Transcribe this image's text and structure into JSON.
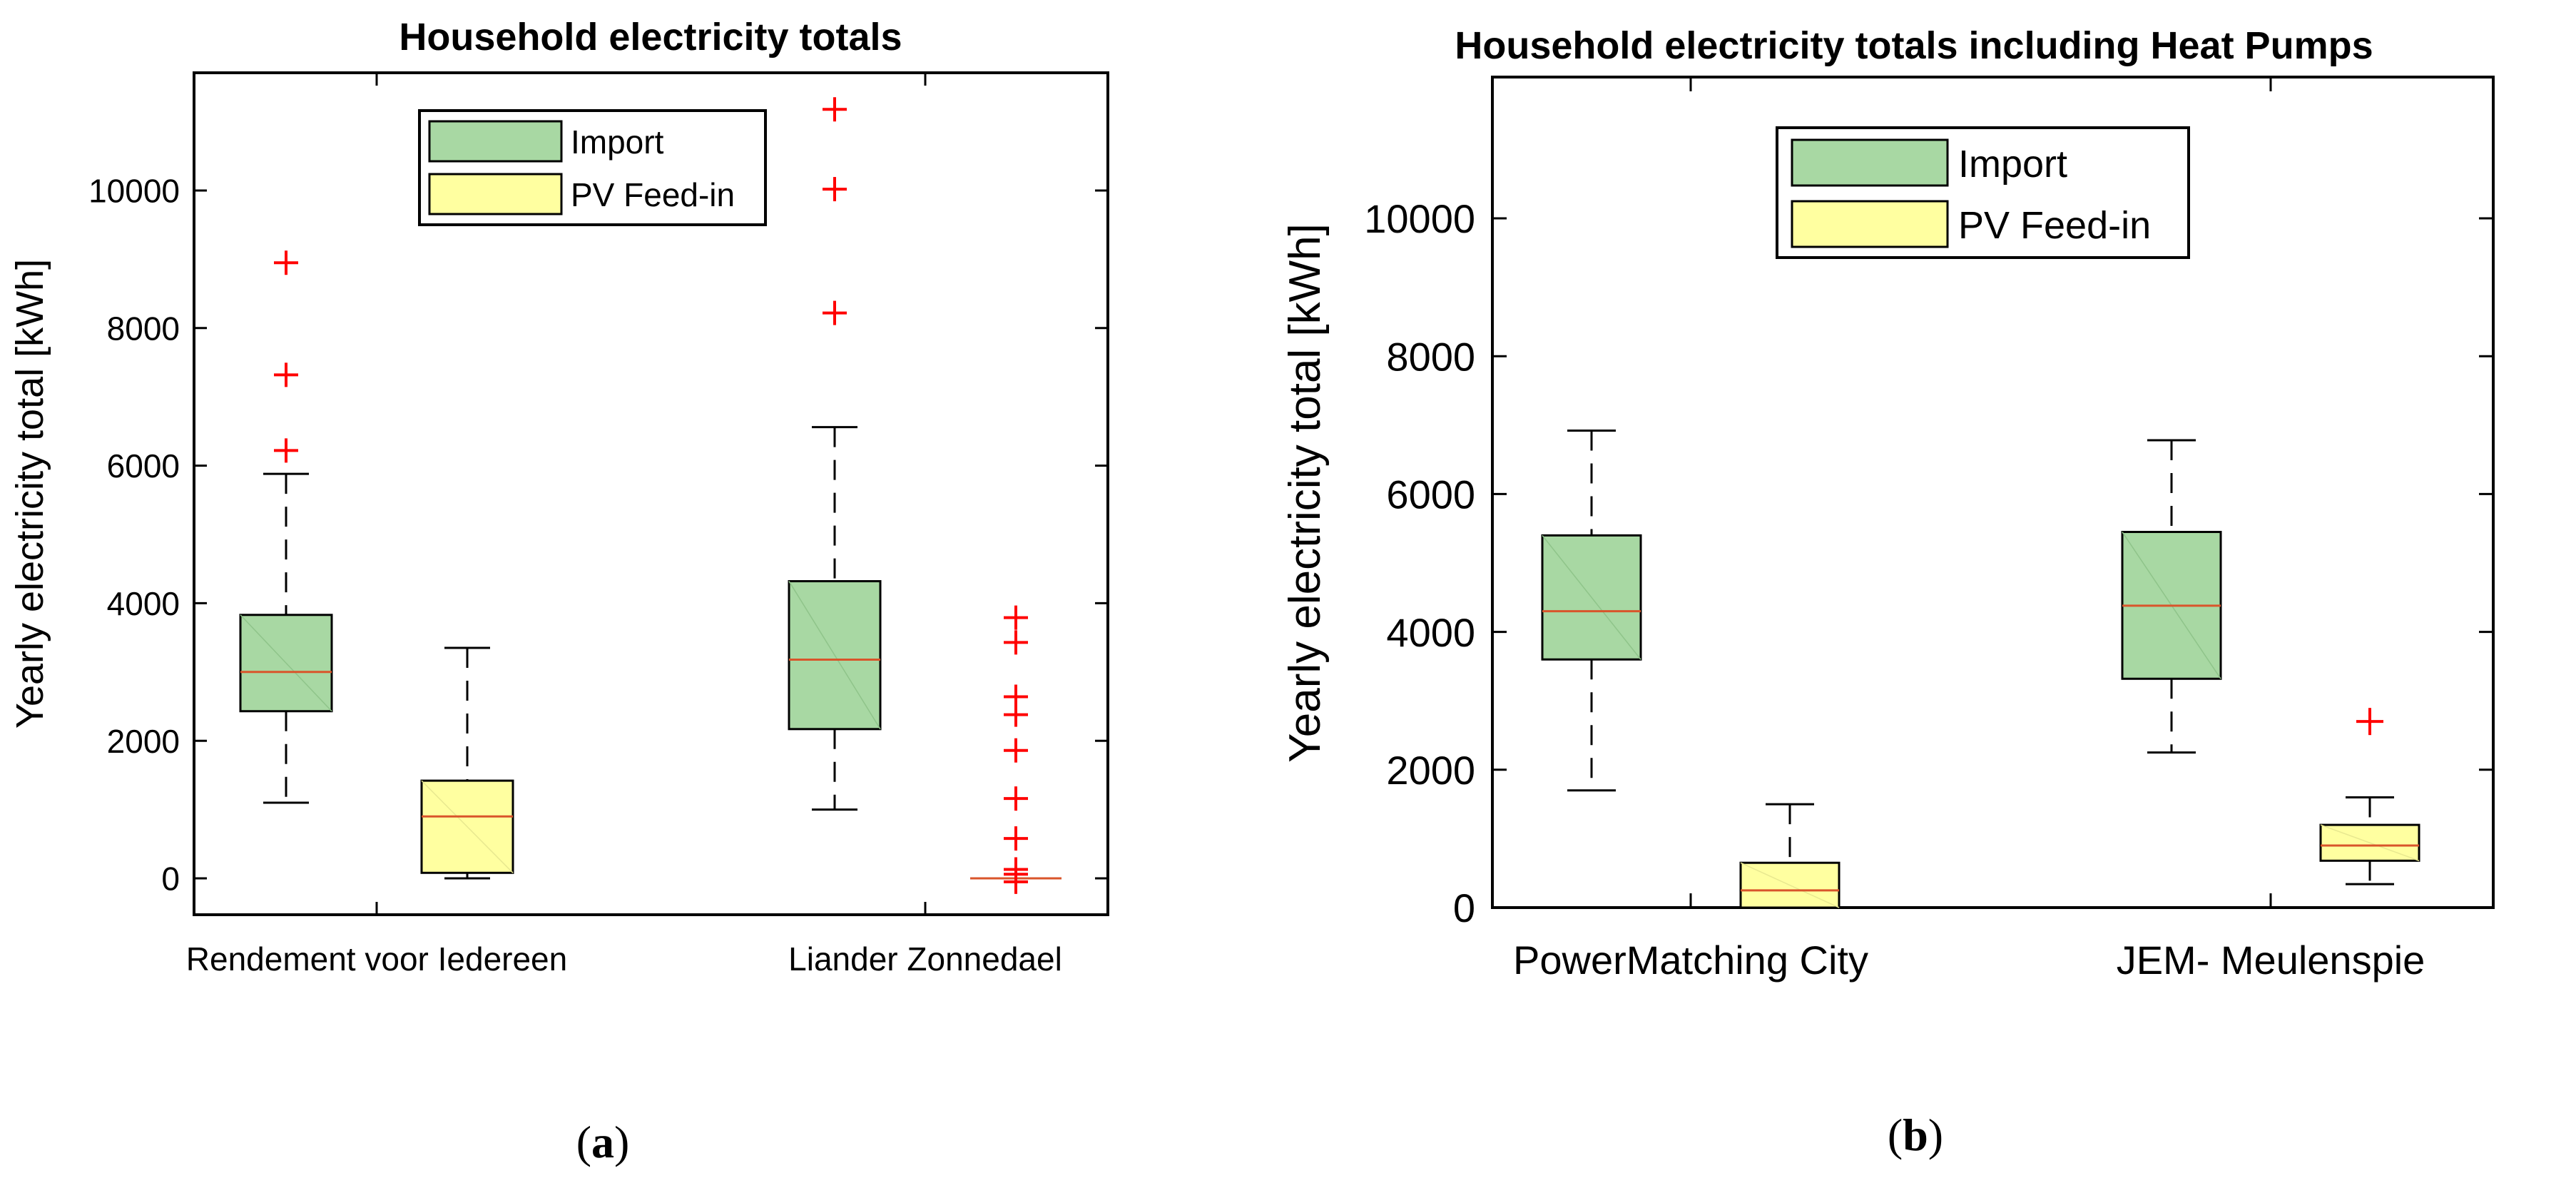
{
  "chart_data": [
    {
      "type": "boxplot",
      "panel_label": "a",
      "title": "Household electricity totals",
      "xlabel": "",
      "ylabel": "Yearly electricity total [kWh]",
      "ylim": [
        -500,
        11800
      ],
      "yticks": [
        0,
        2000,
        4000,
        6000,
        8000,
        10000
      ],
      "legend": {
        "position": "top-center",
        "entries": [
          "Import",
          "PV Feed-in"
        ]
      },
      "categories": [
        "Rendement voor Iedereen",
        "Liander Zonnedael"
      ],
      "series": [
        {
          "name": "Import",
          "color": "#a8d8a3",
          "boxes": [
            {
              "category": "Rendement voor Iedereen",
              "whisker_low": 1100,
              "q1": 2430,
              "median": 3000,
              "q3": 3830,
              "whisker_high": 5880,
              "outliers": [
                6220,
                7320,
                8950
              ]
            },
            {
              "category": "Liander Zonnedael",
              "whisker_low": 1000,
              "q1": 2170,
              "median": 3180,
              "q3": 4320,
              "whisker_high": 6560,
              "outliers": [
                8220,
                10020,
                11180
              ]
            }
          ]
        },
        {
          "name": "PV Feed-in",
          "color": "#ffffa0",
          "boxes": [
            {
              "category": "Rendement voor Iedereen",
              "whisker_low": 0,
              "q1": 80,
              "median": 900,
              "q3": 1420,
              "whisker_high": 3350,
              "outliers": []
            },
            {
              "category": "Liander Zonnedael",
              "whisker_low": 0,
              "q1": 0,
              "median": 0,
              "q3": 0,
              "whisker_high": 0,
              "outliers": [
                -50,
                60,
                130,
                580,
                1160,
                1860,
                2380,
                2640,
                3430,
                3790
              ]
            }
          ]
        }
      ]
    },
    {
      "type": "boxplot",
      "panel_label": "b",
      "title": "Household electricity totals including Heat Pumps",
      "xlabel": "",
      "ylabel": "Yearly electricity total [kWh]",
      "ylim": [
        0,
        12000
      ],
      "yticks": [
        0,
        2000,
        4000,
        6000,
        8000,
        10000
      ],
      "legend": {
        "position": "top-center",
        "entries": [
          "Import",
          "PV Feed-in"
        ]
      },
      "categories": [
        "PowerMatching City",
        "JEM- Meulenspie"
      ],
      "series": [
        {
          "name": "Import",
          "color": "#a8d8a3",
          "boxes": [
            {
              "category": "PowerMatching City",
              "whisker_low": 1700,
              "q1": 3600,
              "median": 4300,
              "q3": 5400,
              "whisker_high": 6920,
              "outliers": []
            },
            {
              "category": "JEM- Meulenspie",
              "whisker_low": 2250,
              "q1": 3320,
              "median": 4380,
              "q3": 5450,
              "whisker_high": 6780,
              "outliers": []
            }
          ]
        },
        {
          "name": "PV Feed-in",
          "color": "#ffffa0",
          "boxes": [
            {
              "category": "PowerMatching City",
              "whisker_low": 0,
              "q1": 0,
              "median": 250,
              "q3": 650,
              "whisker_high": 1500,
              "outliers": []
            },
            {
              "category": "JEM- Meulenspie",
              "whisker_low": 340,
              "q1": 680,
              "median": 900,
              "q3": 1200,
              "whisker_high": 1600,
              "outliers": [
                2700
              ]
            }
          ]
        }
      ]
    }
  ],
  "captions": [
    {
      "open": "(",
      "letter": "a",
      "close": ")"
    },
    {
      "open": "(",
      "letter": "b",
      "close": ")"
    }
  ],
  "colors": {
    "import": "#a8d8a3",
    "pv": "#ffffa0",
    "median": "#d9552b",
    "outlier": "#ff0000"
  }
}
